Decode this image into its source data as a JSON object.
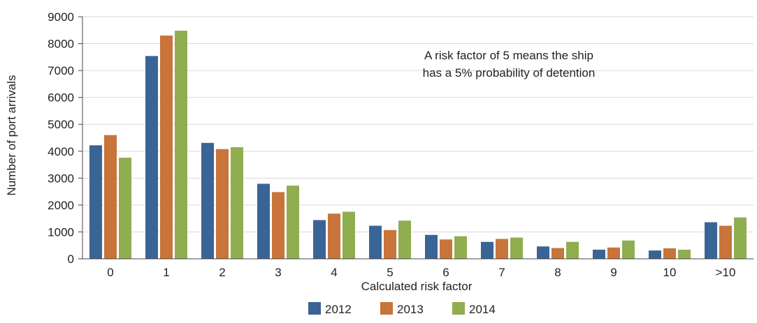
{
  "chart_data": {
    "type": "bar",
    "title": "",
    "xlabel": "Calculated risk factor",
    "ylabel": "Number of port arrivals",
    "categories": [
      "0",
      "1",
      "2",
      "3",
      "4",
      "5",
      "6",
      "7",
      "8",
      "9",
      "10",
      ">10"
    ],
    "series": [
      {
        "name": "2012",
        "color": "#3a6496",
        "values": [
          4220,
          7540,
          4310,
          2790,
          1440,
          1230,
          890,
          630,
          460,
          340,
          310,
          1360
        ]
      },
      {
        "name": "2013",
        "color": "#c8743a",
        "values": [
          4600,
          8300,
          4080,
          2480,
          1680,
          1070,
          720,
          740,
          400,
          420,
          390,
          1230
        ]
      },
      {
        "name": "2014",
        "color": "#8fae50",
        "values": [
          3760,
          8480,
          4150,
          2720,
          1750,
          1420,
          840,
          790,
          630,
          680,
          340,
          1540
        ]
      }
    ],
    "ylim": [
      0,
      9000
    ],
    "yticks": [
      0,
      1000,
      2000,
      3000,
      4000,
      5000,
      6000,
      7000,
      8000,
      9000
    ],
    "grid": true,
    "legend": "bottom-center",
    "annotation": [
      "A risk factor of 5 means the ship",
      "has a 5% probability of detention"
    ]
  }
}
